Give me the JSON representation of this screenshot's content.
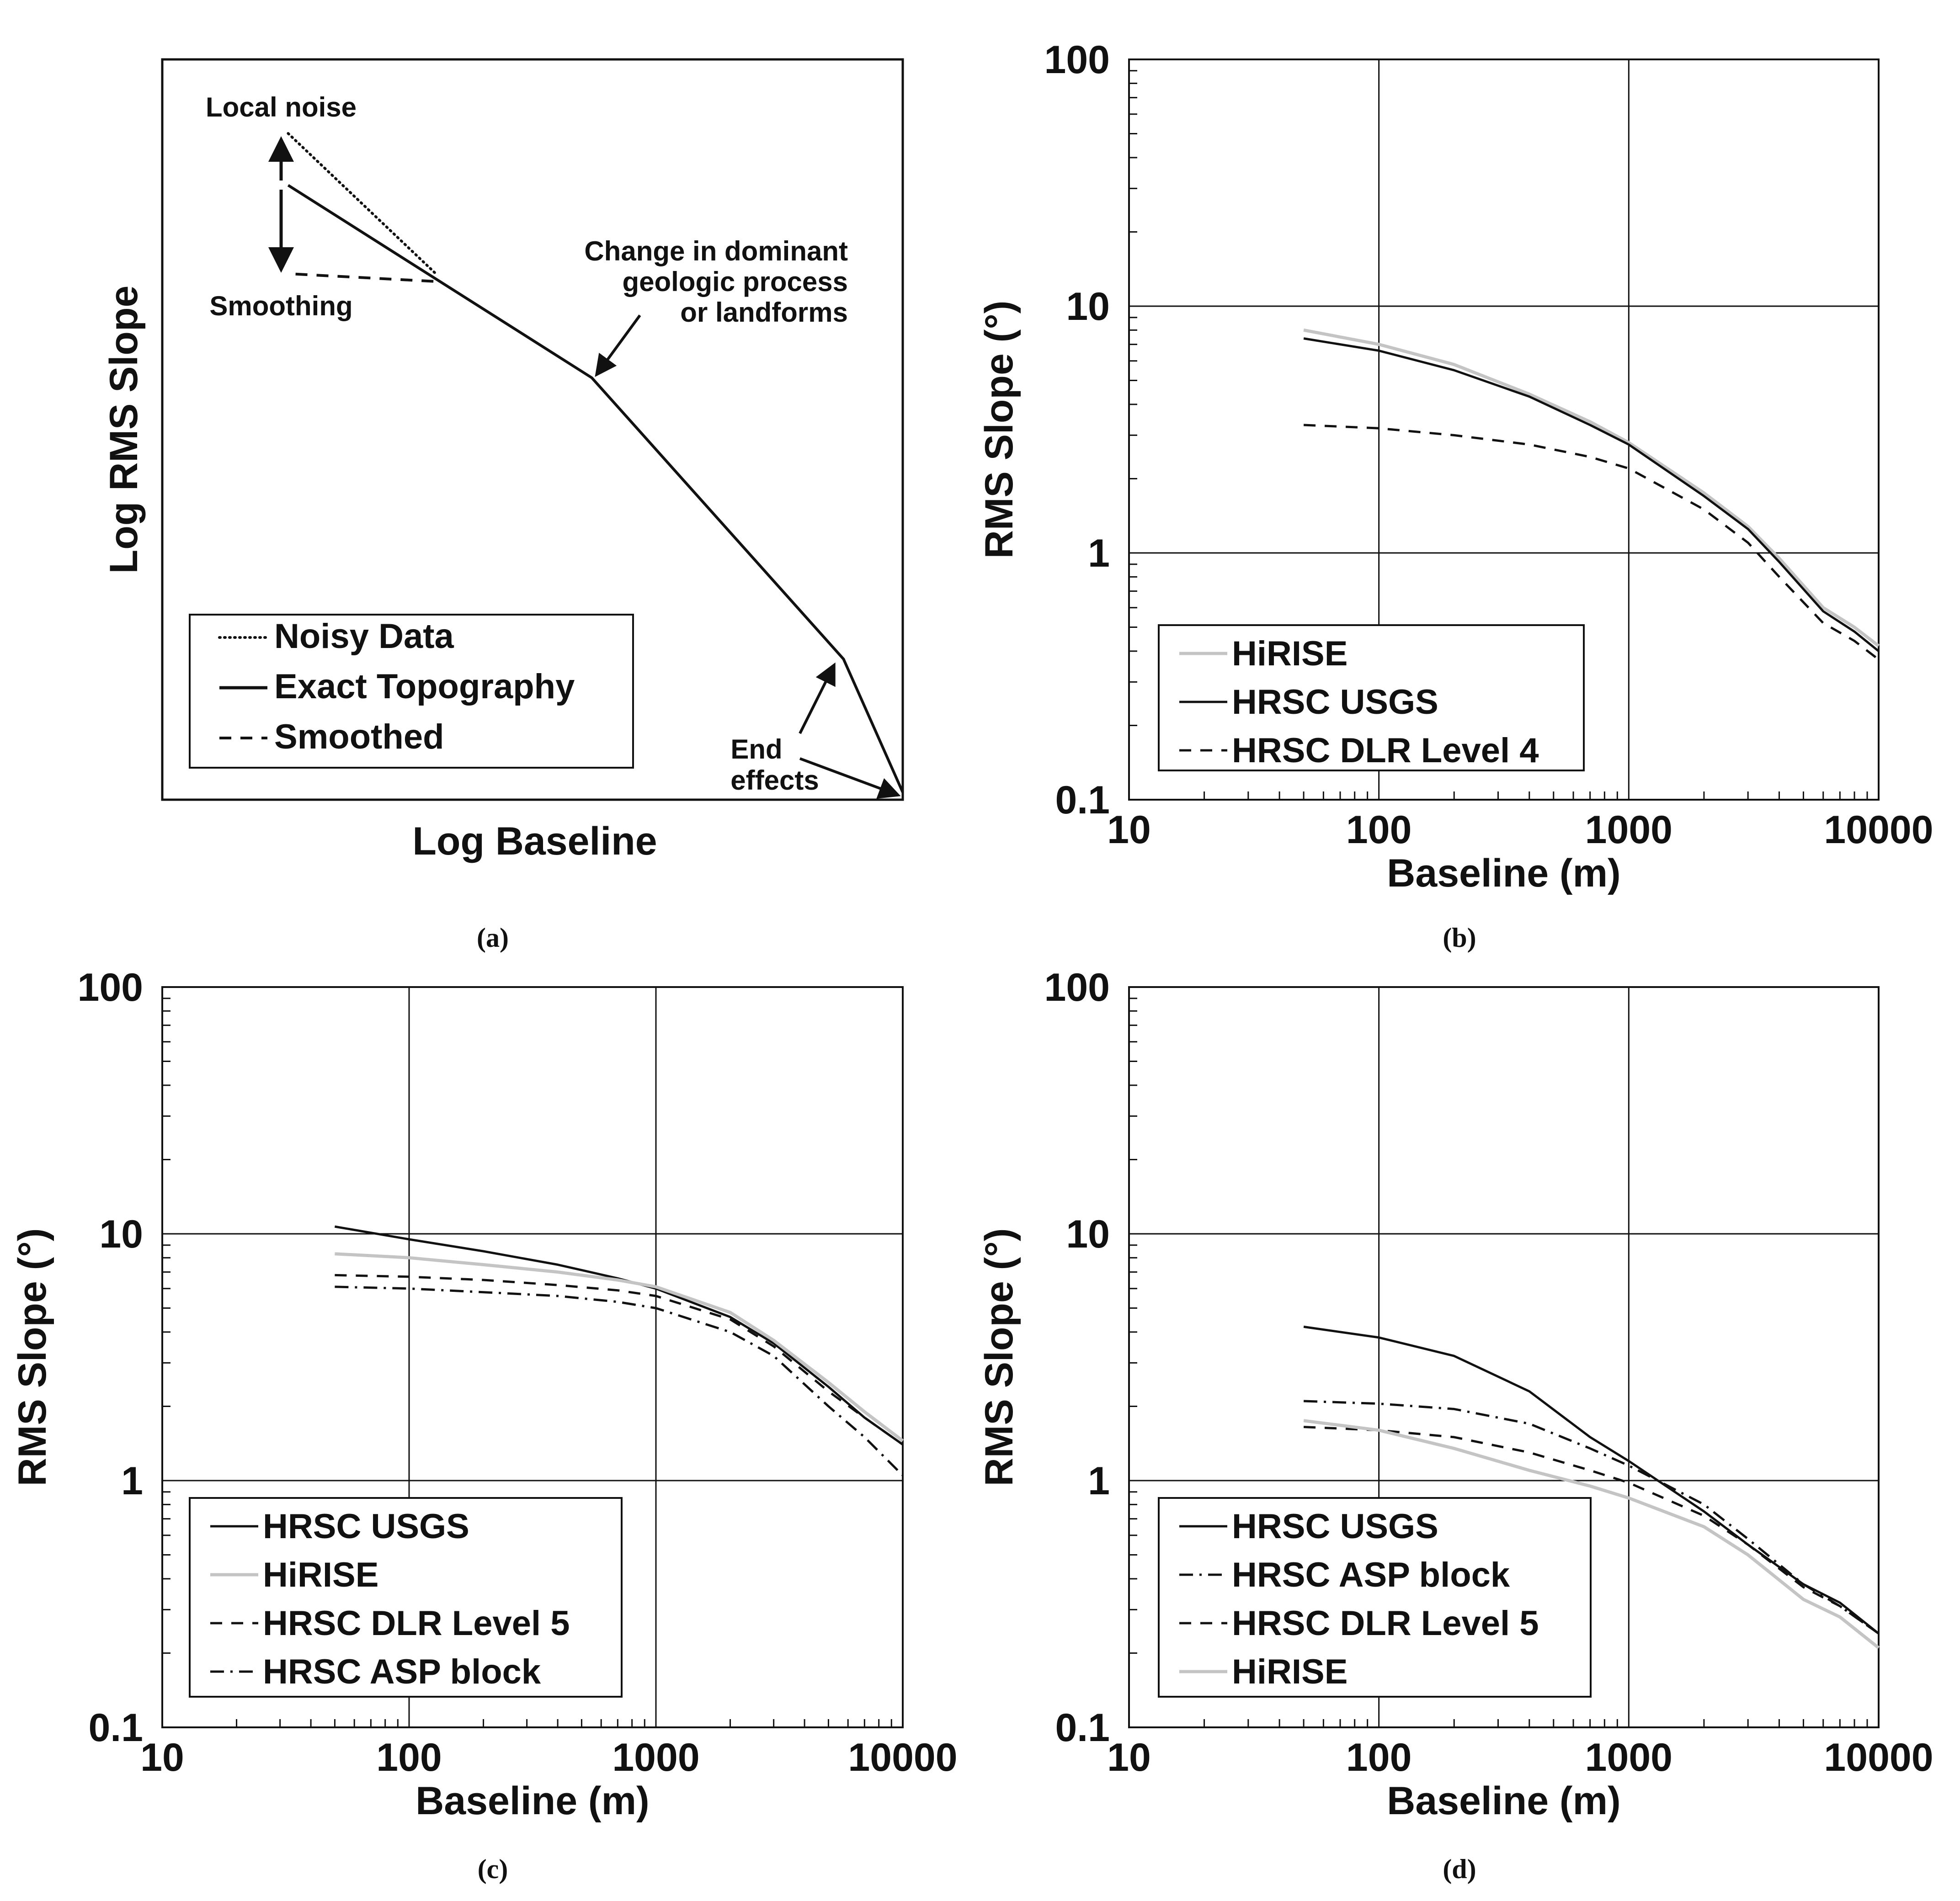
{
  "figure": {
    "captions": [
      "(a)",
      "(b)",
      "(c)",
      "(d)"
    ]
  },
  "colors": {
    "ink": "#111111",
    "grid": "#111111",
    "hirise": "#c4c4c4"
  },
  "chart_data": [
    {
      "id": "a",
      "type": "line",
      "schematic": true,
      "title": "",
      "xlabel": "Log Baseline",
      "ylabel": "Log RMS Slope",
      "axis_units": "arbitrary 0-100",
      "series": [
        {
          "name": "Noisy Data",
          "style": "dotted",
          "color": "#111111",
          "x": [
            17,
            37
          ],
          "y": [
            90,
            71
          ]
        },
        {
          "name": "Exact Topography",
          "style": "solid",
          "color": "#111111",
          "x": [
            17,
            58,
            92,
            100
          ],
          "y": [
            83,
            57,
            19,
            1
          ]
        },
        {
          "name": "Smoothed",
          "style": "dashed",
          "color": "#111111",
          "x": [
            18,
            37
          ],
          "y": [
            71,
            70
          ]
        }
      ],
      "annotations": [
        {
          "text": "Local noise"
        },
        {
          "text": "Smoothing"
        },
        {
          "lines": [
            "Change in dominant",
            "geologic process",
            "or landforms"
          ]
        },
        {
          "lines": [
            "End",
            "effects"
          ]
        }
      ],
      "legend": {
        "position": "bottom-left",
        "entries": [
          "Noisy Data",
          "Exact Topography",
          "Smoothed"
        ]
      }
    },
    {
      "id": "b",
      "type": "line",
      "xscale": "log",
      "yscale": "log",
      "xlim": [
        10,
        10000
      ],
      "ylim": [
        0.1,
        100
      ],
      "xticks": [
        "10",
        "100",
        "1000",
        "10000"
      ],
      "yticks": [
        "0.1",
        "1",
        "10",
        "100"
      ],
      "xlabel": "Baseline (m)",
      "ylabel": "RMS Slope (°)",
      "legend": {
        "position": "bottom-left"
      },
      "series": [
        {
          "name": "HiRISE",
          "style": "solid",
          "color": "#c4c4c4",
          "x": [
            50,
            100,
            200,
            400,
            700,
            1000,
            2000,
            3000,
            4000,
            6000,
            8000,
            10000
          ],
          "y": [
            8.0,
            7.0,
            5.8,
            4.4,
            3.4,
            2.8,
            1.75,
            1.28,
            0.95,
            0.6,
            0.5,
            0.42
          ]
        },
        {
          "name": "HRSC USGS",
          "style": "solid",
          "color": "#111111",
          "x": [
            50,
            100,
            200,
            400,
            700,
            1000,
            2000,
            3000,
            4000,
            6000,
            8000,
            10000
          ],
          "y": [
            7.4,
            6.6,
            5.5,
            4.3,
            3.3,
            2.75,
            1.7,
            1.25,
            0.92,
            0.58,
            0.48,
            0.4
          ]
        },
        {
          "name": "HRSC DLR Level 4",
          "style": "dashed",
          "color": "#111111",
          "x": [
            50,
            100,
            200,
            400,
            700,
            1000,
            2000,
            3000,
            4000,
            6000,
            8000,
            10000
          ],
          "y": [
            3.3,
            3.2,
            3.0,
            2.75,
            2.45,
            2.2,
            1.5,
            1.1,
            0.8,
            0.52,
            0.44,
            0.37
          ]
        }
      ]
    },
    {
      "id": "c",
      "type": "line",
      "xscale": "log",
      "yscale": "log",
      "xlim": [
        10,
        10000
      ],
      "ylim": [
        0.1,
        100
      ],
      "xticks": [
        "10",
        "100",
        "1000",
        "10000"
      ],
      "yticks": [
        "0.1",
        "1",
        "10",
        "100"
      ],
      "xlabel": "Baseline (m)",
      "ylabel": "RMS Slope (°)",
      "legend": {
        "position": "bottom-left"
      },
      "series": [
        {
          "name": "HRSC USGS",
          "style": "solid",
          "color": "#111111",
          "x": [
            50,
            100,
            200,
            400,
            700,
            1000,
            2000,
            3000,
            5000,
            7000,
            10000
          ],
          "y": [
            10.7,
            9.5,
            8.5,
            7.5,
            6.6,
            6.0,
            4.6,
            3.6,
            2.4,
            1.8,
            1.4
          ]
        },
        {
          "name": "HiRISE",
          "style": "solid",
          "color": "#c4c4c4",
          "x": [
            50,
            100,
            200,
            400,
            700,
            1000,
            2000,
            3000,
            5000,
            7000,
            10000
          ],
          "y": [
            8.3,
            8.0,
            7.5,
            7.0,
            6.5,
            6.1,
            4.8,
            3.7,
            2.5,
            1.9,
            1.45
          ]
        },
        {
          "name": "HRSC DLR Level 5",
          "style": "dashed",
          "color": "#111111",
          "x": [
            50,
            100,
            200,
            400,
            700,
            1000,
            2000,
            3000,
            5000,
            7000,
            10000
          ],
          "y": [
            6.8,
            6.7,
            6.5,
            6.2,
            5.9,
            5.6,
            4.5,
            3.5,
            2.3,
            1.8,
            1.4
          ]
        },
        {
          "name": "HRSC ASP block",
          "style": "dashdot",
          "color": "#111111",
          "x": [
            50,
            100,
            200,
            400,
            700,
            1000,
            2000,
            3000,
            5000,
            7000,
            10000
          ],
          "y": [
            6.1,
            6.0,
            5.8,
            5.6,
            5.3,
            5.0,
            4.0,
            3.2,
            2.0,
            1.5,
            1.05
          ]
        }
      ]
    },
    {
      "id": "d",
      "type": "line",
      "xscale": "log",
      "yscale": "log",
      "xlim": [
        10,
        10000
      ],
      "ylim": [
        0.1,
        100
      ],
      "xticks": [
        "10",
        "100",
        "1000",
        "10000"
      ],
      "yticks": [
        "0.1",
        "1",
        "10",
        "100"
      ],
      "xlabel": "Baseline (m)",
      "ylabel": "RMS Slope (°)",
      "legend": {
        "position": "bottom-left"
      },
      "series": [
        {
          "name": "HRSC USGS",
          "style": "solid",
          "color": "#111111",
          "x": [
            50,
            100,
            200,
            400,
            700,
            1000,
            2000,
            3000,
            5000,
            7000,
            10000
          ],
          "y": [
            4.2,
            3.8,
            3.2,
            2.3,
            1.5,
            1.2,
            0.75,
            0.55,
            0.38,
            0.32,
            0.24
          ]
        },
        {
          "name": "HRSC ASP block",
          "style": "dashdot",
          "color": "#111111",
          "x": [
            50,
            100,
            200,
            400,
            700,
            1000,
            2000,
            3000,
            5000,
            7000,
            10000
          ],
          "y": [
            2.1,
            2.05,
            1.95,
            1.7,
            1.35,
            1.15,
            0.8,
            0.58,
            0.38,
            0.31,
            0.24
          ]
        },
        {
          "name": "HRSC DLR Level 5",
          "style": "dashed",
          "color": "#111111",
          "x": [
            50,
            100,
            200,
            400,
            700,
            1000,
            2000,
            3000,
            5000,
            7000,
            10000
          ],
          "y": [
            1.65,
            1.6,
            1.5,
            1.3,
            1.1,
            0.98,
            0.72,
            0.55,
            0.37,
            0.31,
            0.24
          ]
        },
        {
          "name": "HiRISE",
          "style": "solid",
          "color": "#c4c4c4",
          "x": [
            50,
            100,
            200,
            400,
            700,
            1000,
            2000,
            3000,
            5000,
            7000,
            10000
          ],
          "y": [
            1.75,
            1.6,
            1.35,
            1.1,
            0.95,
            0.85,
            0.65,
            0.5,
            0.33,
            0.28,
            0.21
          ]
        }
      ]
    }
  ]
}
